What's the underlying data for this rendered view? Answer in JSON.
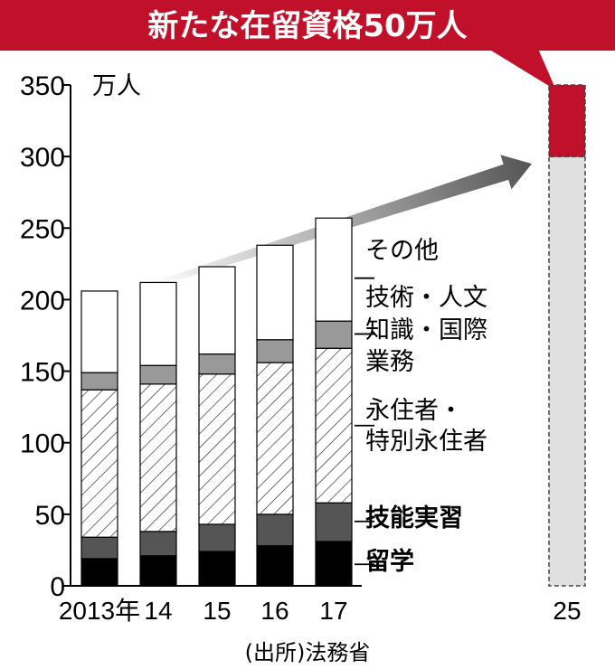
{
  "chart_data": {
    "type": "bar",
    "title": "新たな在留資格50万人",
    "unit": "万人",
    "source": "(出所)法務省",
    "ylim": [
      0,
      350
    ],
    "yticks": [
      "0",
      "50",
      "100",
      "150",
      "200",
      "250",
      "300",
      "350"
    ],
    "categories": [
      "2013年",
      "14",
      "15",
      "16",
      "17"
    ],
    "series": [
      {
        "name": "留学",
        "values": [
          19,
          21,
          24,
          28,
          31
        ]
      },
      {
        "name": "技能実習",
        "values": [
          15,
          17,
          19,
          22,
          27
        ]
      },
      {
        "name": "永住者・特別永住者",
        "values": [
          103,
          103,
          105,
          106,
          108
        ]
      },
      {
        "name": "技術・人文知識・国際業務",
        "values": [
          12,
          13,
          14,
          16,
          19
        ]
      },
      {
        "name": "その他",
        "values": [
          57,
          58,
          61,
          66,
          72
        ]
      }
    ],
    "projection": {
      "category": "25",
      "base": 300,
      "new": 50,
      "total": 350
    },
    "colors": {
      "title_bg": "#c0102a",
      "study": "#000000",
      "trainee": "#555555",
      "permanent": "#ffffff",
      "professional": "#999999",
      "other": "#ffffff",
      "projection_base": "#e0e0e0",
      "projection_new": "#c0102a",
      "arrow": "#666666"
    },
    "legend_lines": [
      {
        "key": "other",
        "lines": [
          "その他"
        ],
        "bold": false
      },
      {
        "key": "professional",
        "lines": [
          "技術・人文",
          "知識・国際",
          "業務"
        ],
        "bold": false
      },
      {
        "key": "permanent",
        "lines": [
          "永住者・",
          "特別永住者"
        ],
        "bold": false
      },
      {
        "key": "trainee",
        "lines": [
          "技能実習"
        ],
        "bold": true
      },
      {
        "key": "study",
        "lines": [
          "留学"
        ],
        "bold": true
      }
    ]
  }
}
